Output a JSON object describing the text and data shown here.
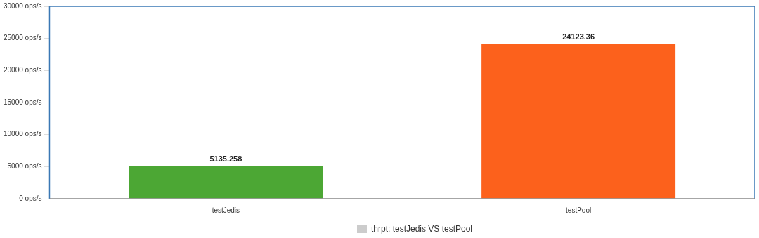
{
  "chart_data": {
    "type": "bar",
    "categories": [
      "testJedis",
      "testPool"
    ],
    "series": [
      {
        "name": "thrpt: testJedis VS testPool",
        "colors": [
          "#4ca734",
          "#fc611c"
        ],
        "values": [
          5135.258,
          24123.36
        ]
      }
    ],
    "ylim": [
      0,
      30000
    ],
    "yticks": [
      {
        "value": 0,
        "label": "0 ops/s"
      },
      {
        "value": 5000,
        "label": "5000 ops/s"
      },
      {
        "value": 10000,
        "label": "10000 ops/s"
      },
      {
        "value": 15000,
        "label": "15000 ops/s"
      },
      {
        "value": 20000,
        "label": "20000 ops/s"
      },
      {
        "value": 25000,
        "label": "25000 ops/s"
      },
      {
        "value": 30000,
        "label": "30000 ops/s"
      }
    ],
    "data_labels": true,
    "grid": false,
    "legend": "bottom"
  }
}
